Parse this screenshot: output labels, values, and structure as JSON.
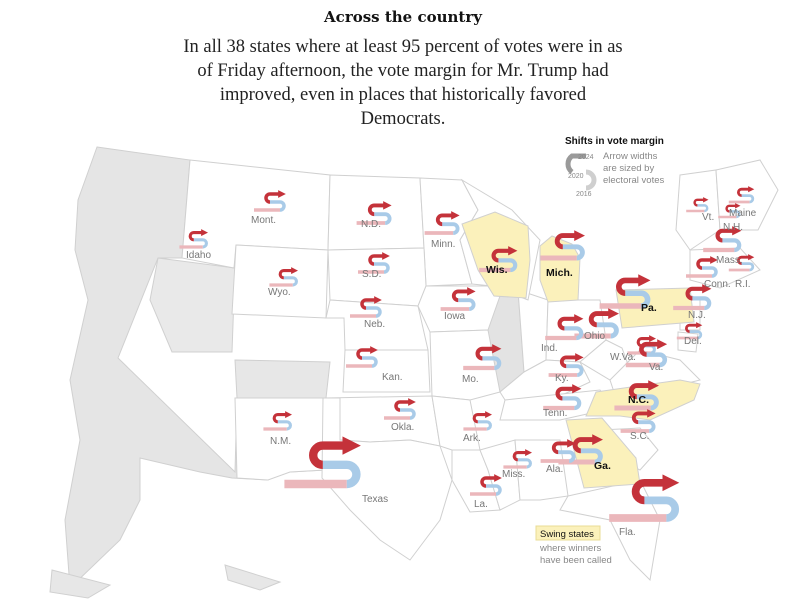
{
  "header": {
    "title": "Across the country",
    "subtitle": "In all 38 states where at least 95 percent of votes were in as of Friday afternoon, the vote margin for Mr. Trump had improved, even in places that historically favored Democrats."
  },
  "legend": {
    "title": "Shifts in vote margin",
    "years": [
      "2024",
      "2020",
      "2016"
    ],
    "note_lines": [
      "Arrow widths",
      "are sized by",
      "electoral votes"
    ],
    "swing_label": "Swing states",
    "swing_note_lines": [
      "where winners",
      "have been called"
    ]
  },
  "colors": {
    "rep_2024": "#c4323a",
    "rep_2020": "#ebb7bb",
    "dem_2020": "#a9cbe8",
    "swing_fill": "#fbf1bb",
    "state_fill": "#ffffff",
    "land_gray": "#e5e5e5",
    "border": "#d0d0d0"
  },
  "states": [
    {
      "name": "Mont.",
      "swing": false
    },
    {
      "name": "N.D.",
      "swing": false
    },
    {
      "name": "Minn.",
      "swing": false
    },
    {
      "name": "Idaho",
      "swing": false
    },
    {
      "name": "Wyo.",
      "swing": false
    },
    {
      "name": "S.D.",
      "swing": false
    },
    {
      "name": "Wis.",
      "swing": true
    },
    {
      "name": "Mich.",
      "swing": true
    },
    {
      "name": "Neb.",
      "swing": false
    },
    {
      "name": "Iowa",
      "swing": false
    },
    {
      "name": "Pa.",
      "swing": true
    },
    {
      "name": "Ohio",
      "swing": false
    },
    {
      "name": "Ind.",
      "swing": false
    },
    {
      "name": "Kan.",
      "swing": false
    },
    {
      "name": "Mo.",
      "swing": false
    },
    {
      "name": "Ky.",
      "swing": false
    },
    {
      "name": "W.Va.",
      "swing": false
    },
    {
      "name": "Va.",
      "swing": false
    },
    {
      "name": "N.C.",
      "swing": true
    },
    {
      "name": "Tenn.",
      "swing": false
    },
    {
      "name": "N.M.",
      "swing": false
    },
    {
      "name": "Okla.",
      "swing": false
    },
    {
      "name": "Ark.",
      "swing": false
    },
    {
      "name": "S.C.",
      "swing": false
    },
    {
      "name": "Ga.",
      "swing": true
    },
    {
      "name": "Miss.",
      "swing": false
    },
    {
      "name": "Ala.",
      "swing": false
    },
    {
      "name": "Texas",
      "swing": false
    },
    {
      "name": "La.",
      "swing": false
    },
    {
      "name": "Fla.",
      "swing": false
    },
    {
      "name": "Maine",
      "swing": false
    },
    {
      "name": "Vt.",
      "swing": false
    },
    {
      "name": "N.H.",
      "swing": false
    },
    {
      "name": "Mass.",
      "swing": false
    },
    {
      "name": "Conn.",
      "swing": false
    },
    {
      "name": "R.I.",
      "swing": false
    },
    {
      "name": "N.J.",
      "swing": false
    },
    {
      "name": "Del.",
      "swing": false
    }
  ]
}
